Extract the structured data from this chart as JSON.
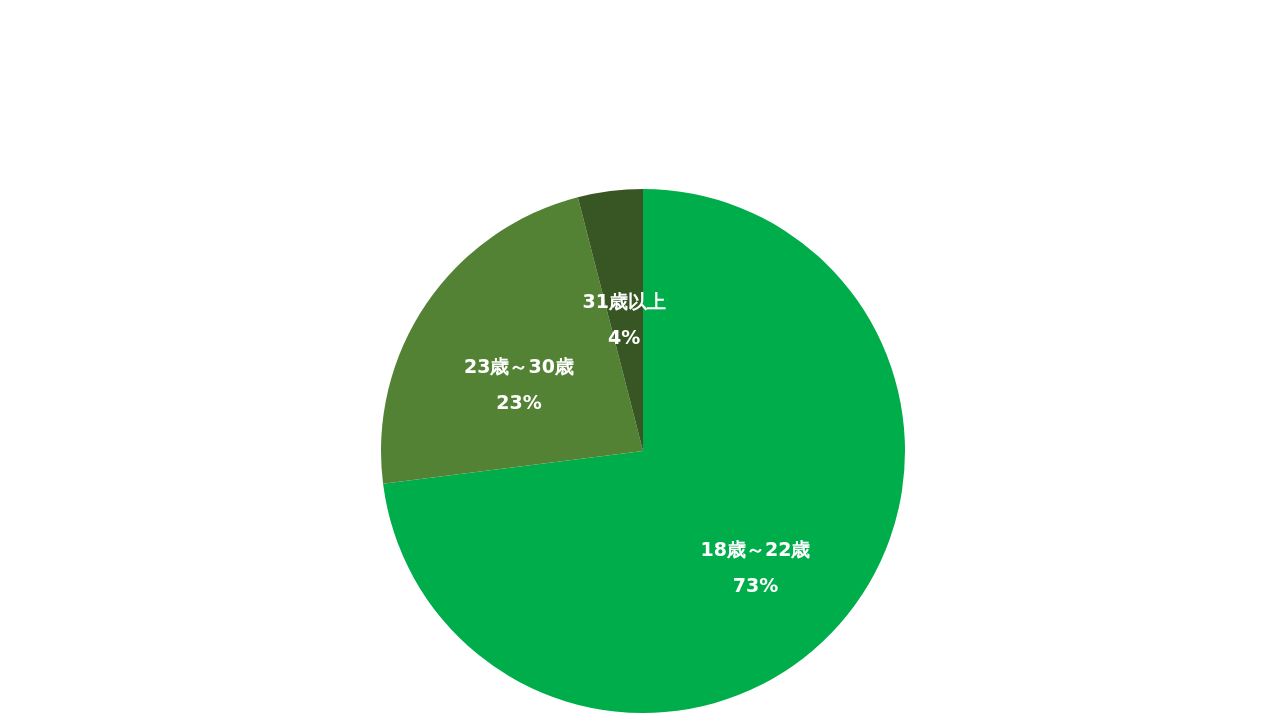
{
  "chart_data": {
    "type": "pie",
    "categories": [
      "18歳～22歳",
      "23歳～30歳",
      "31歳以上"
    ],
    "values": [
      73,
      23,
      4
    ],
    "colors": [
      "#00ad4b",
      "#548235",
      "#375623"
    ],
    "value_labels": [
      "73%",
      "23%",
      "4%"
    ]
  }
}
